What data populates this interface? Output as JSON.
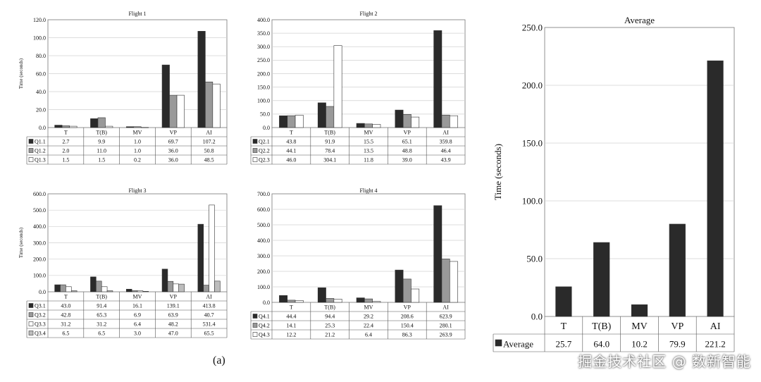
{
  "caption": "(a)",
  "watermark": "掘金技术社区 @ 数新智能",
  "colors": {
    "q1": "#2a2a2a",
    "q2": "#999999",
    "q3": "#ffffff",
    "q4": "#bdbdbd",
    "grid": "#d0d0d0",
    "frame": "#777777"
  },
  "chart_data": [
    {
      "type": "bar",
      "title": "Flight 1",
      "ylabel": "Time (seconds)",
      "categories": [
        "T",
        "T(B)",
        "MV",
        "VP",
        "AI"
      ],
      "ylim": [
        0,
        120
      ],
      "yticks": [
        "0.0",
        "20.0",
        "40.0",
        "60.0",
        "80.0",
        "100.0",
        "120.0"
      ],
      "series": [
        {
          "name": "Q1.1",
          "values": [
            2.7,
            9.9,
            1.0,
            69.7,
            107.2
          ],
          "labels": [
            "2.7",
            "9.9",
            "1.0",
            "69.7",
            "107.2"
          ]
        },
        {
          "name": "Q1.2",
          "values": [
            2.0,
            11.0,
            1.0,
            36.0,
            50.8
          ],
          "labels": [
            "2.0",
            "11.0",
            "1.0",
            "36.0",
            "50.8"
          ]
        },
        {
          "name": "Q1.3",
          "values": [
            1.5,
            1.5,
            0.2,
            36.0,
            48.5
          ],
          "labels": [
            "1.5",
            "1.5",
            "0.2",
            "36.0",
            "48.5"
          ]
        }
      ]
    },
    {
      "type": "bar",
      "title": "Flight 2",
      "ylabel": "",
      "categories": [
        "T",
        "T(B)",
        "MV",
        "VP",
        "AI"
      ],
      "ylim": [
        0,
        400
      ],
      "yticks": [
        "0.0",
        "50.0",
        "100.0",
        "150.0",
        "200.0",
        "250.0",
        "300.0",
        "350.0",
        "400.0"
      ],
      "series": [
        {
          "name": "Q2.1",
          "values": [
            43.8,
            91.9,
            15.5,
            65.1,
            359.8
          ],
          "labels": [
            "43.8",
            "91.9",
            "15.5",
            "65.1",
            "359.8"
          ]
        },
        {
          "name": "Q2.2",
          "values": [
            44.1,
            78.4,
            13.5,
            48.8,
            46.4
          ],
          "labels": [
            "44.1",
            "78.4",
            "13.5",
            "48.8",
            "46.4"
          ]
        },
        {
          "name": "Q2.3",
          "values": [
            46.0,
            304.1,
            11.8,
            39.0,
            43.9
          ],
          "labels": [
            "46.0",
            "304.1",
            "11.8",
            "39.0",
            "43.9"
          ]
        }
      ]
    },
    {
      "type": "bar",
      "title": "Flight 3",
      "ylabel": "Time (seconds)",
      "categories": [
        "T",
        "T(B)",
        "MV",
        "VP",
        "AI"
      ],
      "ylim": [
        0,
        600
      ],
      "yticks": [
        "0.0",
        "100.0",
        "200.0",
        "300.0",
        "400.0",
        "500.0",
        "600.0"
      ],
      "series": [
        {
          "name": "Q3.1",
          "values": [
            43.0,
            91.4,
            16.1,
            139.1,
            413.8
          ],
          "labels": [
            "43.0",
            "91.4",
            "16.1",
            "139.1",
            "413.8"
          ]
        },
        {
          "name": "Q3.2",
          "values": [
            42.8,
            65.3,
            6.9,
            63.9,
            40.7
          ],
          "labels": [
            "42.8",
            "65.3",
            "6.9",
            "63.9",
            "40.7"
          ]
        },
        {
          "name": "Q3.3",
          "values": [
            31.2,
            31.2,
            6.4,
            48.2,
            531.4
          ],
          "labels": [
            "31.2",
            "31.2",
            "6.4",
            "48.2",
            "531.4"
          ]
        },
        {
          "name": "Q3.4",
          "values": [
            6.5,
            6.5,
            3.0,
            47.0,
            65.5
          ],
          "labels": [
            "6.5",
            "6.5",
            "3.0",
            "47.0",
            "65.5"
          ]
        }
      ]
    },
    {
      "type": "bar",
      "title": "Flight 4",
      "ylabel": "",
      "categories": [
        "T",
        "T(B)",
        "MV",
        "VP",
        "AI"
      ],
      "ylim": [
        0,
        700
      ],
      "yticks": [
        "0.0",
        "100.0",
        "200.0",
        "300.0",
        "400.0",
        "500.0",
        "600.0",
        "700.0"
      ],
      "series": [
        {
          "name": "Q4.1",
          "values": [
            44.4,
            94.4,
            29.2,
            208.6,
            623.9
          ],
          "labels": [
            "44.4",
            "94.4",
            "29.2",
            "208.6",
            "623.9"
          ]
        },
        {
          "name": "Q4.2",
          "values": [
            14.1,
            25.3,
            22.4,
            150.4,
            280.1
          ],
          "labels": [
            "14.1",
            "25.3",
            "22.4",
            "150.4",
            "280.1"
          ]
        },
        {
          "name": "Q4.3",
          "values": [
            12.2,
            21.2,
            6.4,
            86.3,
            263.9
          ],
          "labels": [
            "12.2",
            "21.2",
            "6.4",
            "86.3",
            "263.9"
          ]
        }
      ]
    },
    {
      "type": "bar",
      "title": "Average",
      "ylabel": "Time (seconds)",
      "categories": [
        "T",
        "T(B)",
        "MV",
        "VP",
        "AI"
      ],
      "ylim": [
        0,
        250
      ],
      "yticks": [
        "0.0",
        "50.0",
        "100.0",
        "150.0",
        "200.0",
        "250.0"
      ],
      "series": [
        {
          "name": "Average",
          "values": [
            25.7,
            64.0,
            10.2,
            79.9,
            221.2
          ],
          "labels": [
            "25.7",
            "64.0",
            "10.2",
            "79.9",
            "221.2"
          ]
        }
      ]
    }
  ]
}
